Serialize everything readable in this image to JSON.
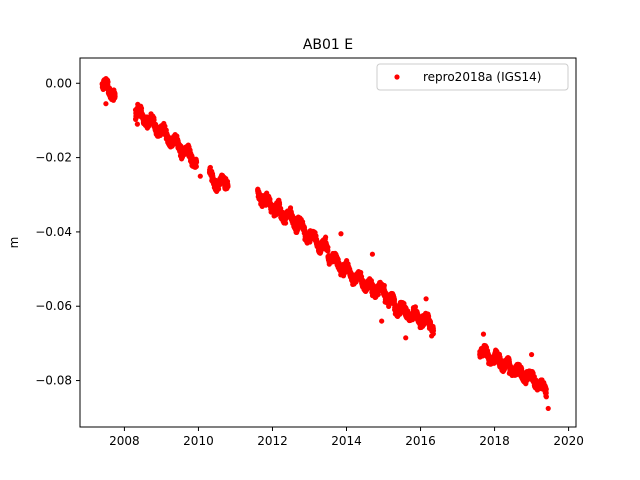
{
  "chart_data": {
    "type": "scatter",
    "title": "AB01 E",
    "xlabel": "",
    "ylabel": "m",
    "xlim": [
      2006.8,
      2020.2
    ],
    "ylim": [
      -0.0925,
      0.0068
    ],
    "xticks": [
      2008,
      2010,
      2012,
      2014,
      2016,
      2018,
      2020
    ],
    "xtick_labels": [
      "2008",
      "2010",
      "2012",
      "2014",
      "2016",
      "2018",
      "2020"
    ],
    "yticks": [
      0.0,
      -0.02,
      -0.04,
      -0.06,
      -0.08
    ],
    "ytick_labels": [
      "0.00",
      "−0.02",
      "−0.04",
      "−0.06",
      "−0.08"
    ],
    "grid": false,
    "legend_position": "upper right",
    "marker": "dot",
    "series": [
      {
        "name": "repro2018a (IGS14)",
        "color": "#ff0000",
        "segments": [
          {
            "start": 2007.4,
            "end": 2007.75,
            "points": [
              [
                2007.4,
                -0.0005
              ],
              [
                2007.5,
                -0.001
              ],
              [
                2007.6,
                -0.002
              ],
              [
                2007.75,
                -0.003
              ]
            ]
          },
          {
            "start": 2008.3,
            "end": 2009.95,
            "points": [
              [
                2008.3,
                -0.0075
              ],
              [
                2008.7,
                -0.0105
              ],
              [
                2009.0,
                -0.013
              ],
              [
                2009.3,
                -0.0155
              ],
              [
                2009.6,
                -0.018
              ],
              [
                2009.95,
                -0.021
              ]
            ]
          },
          {
            "start": 2010.3,
            "end": 2010.8,
            "points": [
              [
                2010.3,
                -0.0245
              ],
              [
                2010.55,
                -0.0275
              ],
              [
                2010.8,
                -0.026
              ]
            ]
          },
          {
            "start": 2011.6,
            "end": 2012.2,
            "points": [
              [
                2011.6,
                -0.029
              ],
              [
                2011.8,
                -0.0315
              ],
              [
                2012.0,
                -0.033
              ],
              [
                2012.2,
                -0.034
              ]
            ]
          },
          {
            "start": 2012.2,
            "end": 2013.5,
            "points": [
              [
                2012.2,
                -0.0345
              ],
              [
                2012.6,
                -0.037
              ],
              [
                2013.0,
                -0.041
              ],
              [
                2013.5,
                -0.045
              ]
            ]
          },
          {
            "start": 2013.5,
            "end": 2014.6,
            "points": [
              [
                2013.5,
                -0.046
              ],
              [
                2014.0,
                -0.0505
              ],
              [
                2014.6,
                -0.0545
              ]
            ]
          },
          {
            "start": 2014.6,
            "end": 2015.3,
            "points": [
              [
                2014.6,
                -0.055
              ],
              [
                2015.0,
                -0.056
              ],
              [
                2015.3,
                -0.0595
              ]
            ]
          },
          {
            "start": 2015.3,
            "end": 2016.35,
            "points": [
              [
                2015.3,
                -0.06
              ],
              [
                2015.8,
                -0.0625
              ],
              [
                2016.35,
                -0.065
              ]
            ]
          },
          {
            "start": 2017.6,
            "end": 2018.4,
            "points": [
              [
                2017.6,
                -0.072
              ],
              [
                2017.8,
                -0.073
              ],
              [
                2018.1,
                -0.0745
              ],
              [
                2018.4,
                -0.076
              ]
            ]
          },
          {
            "start": 2018.4,
            "end": 2019.4,
            "points": [
              [
                2018.4,
                -0.0765
              ],
              [
                2018.8,
                -0.0785
              ],
              [
                2019.1,
                -0.08
              ],
              [
                2019.4,
                -0.083
              ]
            ]
          }
        ],
        "noise_sd": 0.0016,
        "outliers": [
          [
            2007.5,
            -0.0055
          ],
          [
            2008.35,
            -0.011
          ],
          [
            2010.05,
            -0.025
          ],
          [
            2013.85,
            -0.0405
          ],
          [
            2014.7,
            -0.046
          ],
          [
            2014.95,
            -0.064
          ],
          [
            2015.6,
            -0.0685
          ],
          [
            2016.15,
            -0.058
          ],
          [
            2019.0,
            -0.073
          ],
          [
            2019.45,
            -0.0875
          ],
          [
            2017.7,
            -0.0675
          ],
          [
            2016.3,
            -0.068
          ]
        ]
      }
    ]
  }
}
